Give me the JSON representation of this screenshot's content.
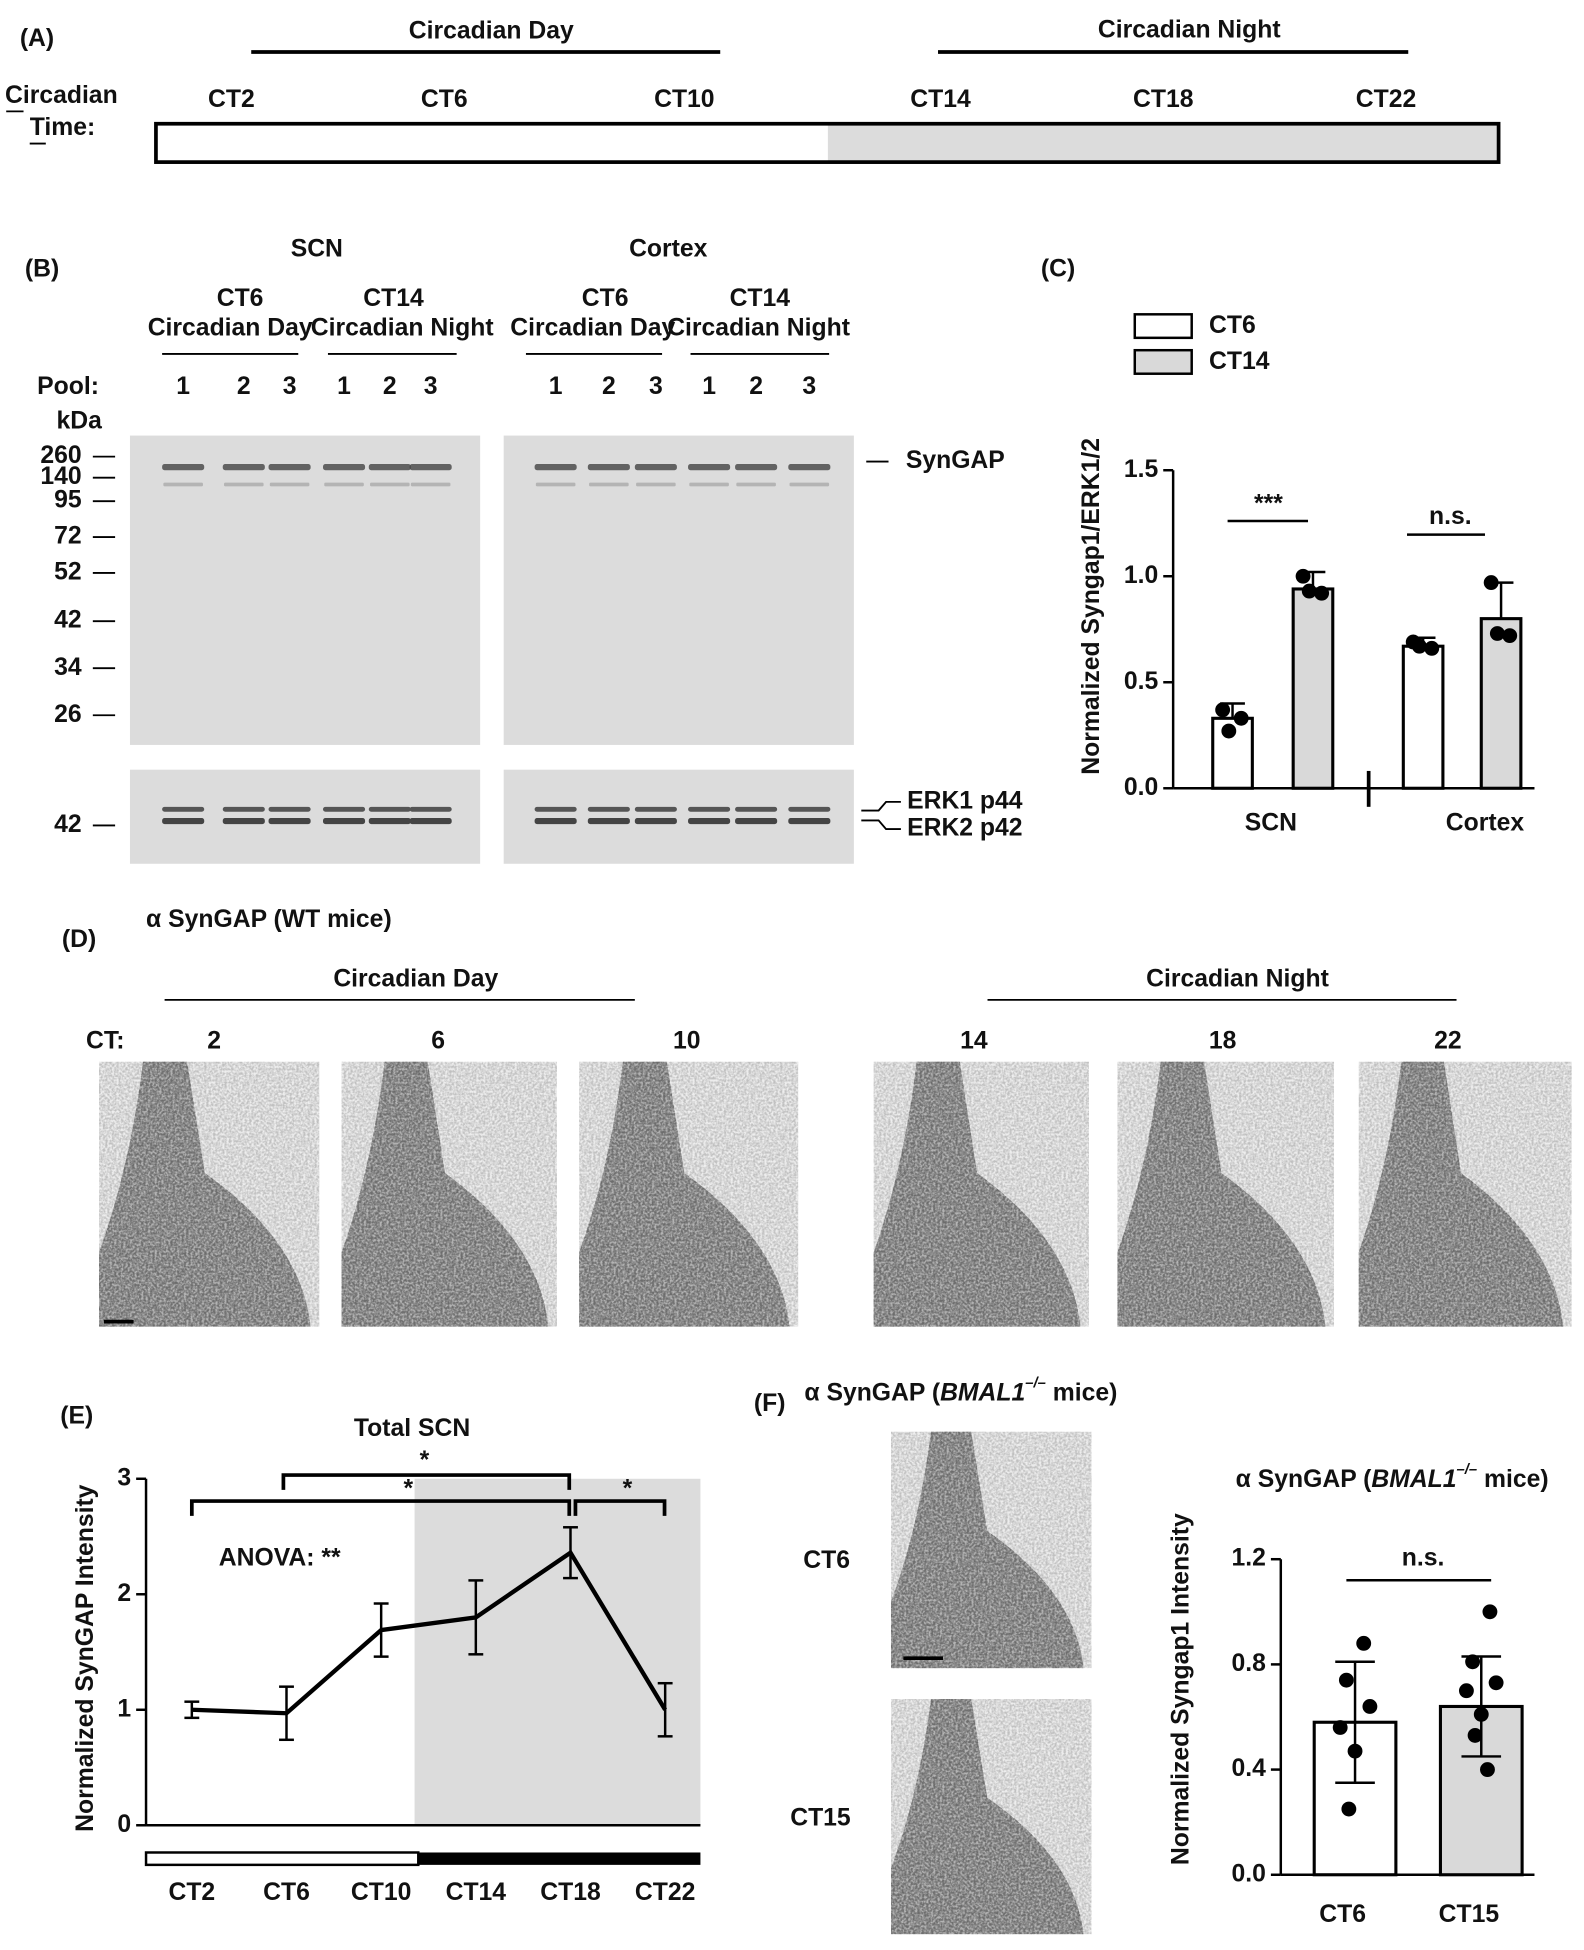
{
  "panel_a": {
    "label": "(A)",
    "day": "Circadian Day",
    "night": "Circadian Night",
    "axis_label": [
      "Circadian",
      "Time:"
    ],
    "times": [
      "CT2",
      "CT6",
      "CT10",
      "CT14",
      "CT18",
      "CT22"
    ]
  },
  "panel_b": {
    "label": "(B)",
    "tissues": [
      "SCN",
      "Cortex"
    ],
    "groups": [
      {
        "ct": "CT6",
        "phase": "Circadian Day"
      },
      {
        "ct": "CT14",
        "phase": "Circadian Night"
      }
    ],
    "pool_label": "Pool:",
    "lanes": [
      1,
      2,
      3,
      1,
      2,
      3
    ],
    "kda_label": "kDa",
    "markers": [
      260,
      140,
      95,
      72,
      52,
      42,
      34,
      26
    ],
    "erk_marker": 42,
    "syngap": "SynGAP",
    "erk1": "ERK1 p44",
    "erk2": "ERK2 p42"
  },
  "panel_d": {
    "label": "(D)",
    "title": "α SynGAP (WT mice)",
    "day": "Circadian Day",
    "night": "Circadian Night",
    "ct_label": "CT:",
    "times": [
      2,
      6,
      10,
      14,
      18,
      22
    ]
  },
  "panel_f": {
    "label": "(F)",
    "title": {
      "prefix": "α SynGAP (",
      "gene": "BMAL1",
      "superscript": "–/–",
      "suffix": " mice)"
    },
    "images": [
      "CT6",
      "CT15"
    ]
  },
  "chart_data": [
    {
      "type": "bar",
      "label": "(C)",
      "ylabel": "Normalized Syngap1/ERK1/2",
      "categories": [
        "SCN",
        "Cortex"
      ],
      "series": [
        {
          "name": "CT6",
          "color": "#ffffff",
          "values": [
            0.33,
            0.67
          ],
          "errors": [
            0.07,
            0.04
          ],
          "points": [
            [
              0.37,
              0.33,
              0.27
            ],
            [
              0.69,
              0.66,
              0.67
            ]
          ]
        },
        {
          "name": "CT14",
          "color": "#d9d9d9",
          "values": [
            0.94,
            0.8
          ],
          "errors": [
            0.08,
            0.17
          ],
          "points": [
            [
              1.0,
              0.92,
              0.93
            ],
            [
              0.97,
              0.72,
              0.73
            ]
          ]
        }
      ],
      "ylim": [
        0,
        1.5
      ],
      "yticks": [
        {
          "value": 0,
          "label": "0.0"
        },
        {
          "value": 0.5,
          "label": "0.5"
        },
        {
          "value": 1,
          "label": "1.0"
        },
        {
          "value": 1.5,
          "label": "1.5"
        }
      ],
      "annotations": [
        "***",
        "n.s."
      ]
    },
    {
      "type": "line",
      "label": "(E)",
      "title": "Total SCN",
      "ylabel": "Normalized SynGAP Intensity",
      "categories": [
        "CT2",
        "CT6",
        "CT10",
        "CT14",
        "CT18",
        "CT22"
      ],
      "values": [
        1.0,
        0.97,
        1.69,
        1.8,
        2.36,
        1.0
      ],
      "errors": [
        0.07,
        0.23,
        0.23,
        0.32,
        0.22,
        0.23
      ],
      "color": "#000000",
      "ylim": [
        0,
        3
      ],
      "yticks": [
        0,
        1,
        2,
        3
      ],
      "annotations": [
        "ANOVA: **",
        "*",
        "*",
        "*"
      ]
    },
    {
      "type": "bar",
      "title": {
        "prefix": "α SynGAP (",
        "gene": "BMAL1",
        "superscript": "–/–",
        "suffix": " mice)"
      },
      "ylabel": "Normalized Syngap1 Intensity",
      "categories": [
        "CT6",
        "CT15"
      ],
      "values": [
        0.58,
        0.64
      ],
      "errors": [
        0.23,
        0.19
      ],
      "colors": [
        "#ffffff",
        "#d9d9d9"
      ],
      "points": [
        [
          0.88,
          0.74,
          0.64,
          0.56,
          0.47,
          0.25
        ],
        [
          1.0,
          0.81,
          0.73,
          0.7,
          0.61,
          0.53,
          0.4
        ]
      ],
      "ylim": [
        0,
        1.2
      ],
      "yticks": [
        {
          "value": 0,
          "label": "0.0"
        },
        {
          "value": 0.4,
          "label": "0.4"
        },
        {
          "value": 0.8,
          "label": "0.8"
        },
        {
          "value": 1.2,
          "label": "1.2"
        }
      ],
      "annotations": [
        "n.s."
      ]
    }
  ]
}
